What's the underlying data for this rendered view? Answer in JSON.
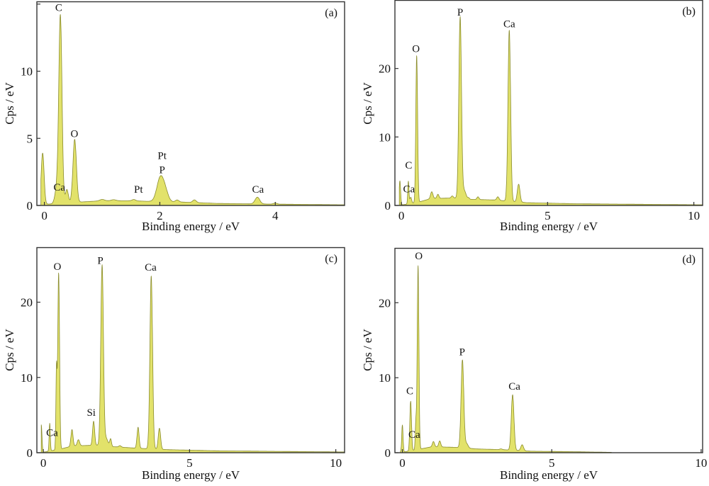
{
  "style": {
    "fill_color": "#e2e26a",
    "stroke_color": "#8a8c2e",
    "frame_color": "#333333"
  },
  "chart_data": [
    {
      "id": "a",
      "type": "area",
      "panel_label": "(a)",
      "xlabel": "Binding energy / eV",
      "ylabel": "Cps / eV",
      "xlim": [
        -0.13,
        5.2
      ],
      "ylim": [
        0,
        15.2
      ],
      "xticks": [
        0,
        2,
        4
      ],
      "xtick_labels": [
        "0",
        "2",
        "4"
      ],
      "yticks": [
        0,
        5,
        10,
        15
      ],
      "ytick_labels": [
        "0",
        "5",
        "10",
        ""
      ],
      "x_end": 5.2,
      "baseline": [
        [
          0.06,
          0.1
        ],
        [
          0.6,
          0.25
        ],
        [
          1.0,
          0.35
        ],
        [
          1.5,
          0.35
        ],
        [
          1.85,
          0.3
        ],
        [
          2.4,
          0.25
        ],
        [
          3.0,
          0.15
        ],
        [
          4.0,
          0.1
        ],
        [
          5.2,
          0.05
        ]
      ],
      "peaks": [
        {
          "x": -0.03,
          "y": 3.8,
          "w": 0.025
        },
        {
          "x": 0.277,
          "y": 14.0,
          "w": 0.028
        },
        {
          "x": 0.21,
          "y": 1.0,
          "w": 0.03
        },
        {
          "x": 0.39,
          "y": 1.0,
          "w": 0.025
        },
        {
          "x": 0.525,
          "y": 4.7,
          "w": 0.03
        },
        {
          "x": 1.0,
          "y": 0.1,
          "w": 0.04
        },
        {
          "x": 1.2,
          "y": 0.08,
          "w": 0.04
        },
        {
          "x": 1.55,
          "y": 0.1,
          "w": 0.03
        },
        {
          "x": 2.01,
          "y": 1.8,
          "w": 0.06
        },
        {
          "x": 2.1,
          "y": 0.6,
          "w": 0.05
        },
        {
          "x": 2.3,
          "y": 0.15,
          "w": 0.03
        },
        {
          "x": 2.6,
          "y": 0.2,
          "w": 0.03
        },
        {
          "x": 3.69,
          "y": 0.5,
          "w": 0.04
        },
        {
          "x": 4.0,
          "y": 0.08,
          "w": 0.03
        }
      ],
      "annotations": [
        {
          "text": "C",
          "x": 0.25,
          "y": 14.5
        },
        {
          "text": "O",
          "x": 0.52,
          "y": 5.1
        },
        {
          "text": "Ca",
          "x": 0.26,
          "y": 1.1
        },
        {
          "text": "Pt",
          "x": 1.63,
          "y": 0.95
        },
        {
          "text": "Pt",
          "x": 2.04,
          "y": 3.45
        },
        {
          "text": "P",
          "x": 2.04,
          "y": 2.4
        },
        {
          "text": "Ca",
          "x": 3.7,
          "y": 0.95
        }
      ]
    },
    {
      "id": "b",
      "type": "area",
      "panel_label": "(b)",
      "xlabel": "Binding energy / eV",
      "ylabel": "Cps / eV",
      "xlim": [
        -0.22,
        10.3
      ],
      "ylim": [
        0,
        30
      ],
      "xticks": [
        0,
        5,
        10
      ],
      "xtick_labels": [
        "0",
        "5",
        "10"
      ],
      "yticks": [
        0,
        10,
        20
      ],
      "ytick_labels": [
        "0",
        "10",
        "20"
      ],
      "x_end": 10.3,
      "baseline": [
        [
          0.05,
          0.1
        ],
        [
          0.6,
          0.5
        ],
        [
          1.0,
          1.0
        ],
        [
          1.8,
          1.1
        ],
        [
          2.3,
          0.9
        ],
        [
          3.2,
          0.8
        ],
        [
          4.3,
          0.4
        ],
        [
          6.0,
          0.25
        ],
        [
          10.3,
          0.1
        ]
      ],
      "peaks": [
        {
          "x": -0.05,
          "y": 3.5,
          "w": 0.025
        },
        {
          "x": 0.24,
          "y": 3.3,
          "w": 0.02
        },
        {
          "x": 0.32,
          "y": 0.9,
          "w": 0.03
        },
        {
          "x": 0.525,
          "y": 21.5,
          "w": 0.03
        },
        {
          "x": 1.04,
          "y": 1.0,
          "w": 0.04
        },
        {
          "x": 1.25,
          "y": 0.6,
          "w": 0.035
        },
        {
          "x": 1.74,
          "y": 0.3,
          "w": 0.035
        },
        {
          "x": 2.01,
          "y": 26.5,
          "w": 0.045
        },
        {
          "x": 2.15,
          "y": 1.2,
          "w": 0.06
        },
        {
          "x": 2.3,
          "y": 0.2,
          "w": 0.03
        },
        {
          "x": 2.62,
          "y": 0.4,
          "w": 0.035
        },
        {
          "x": 3.3,
          "y": 0.5,
          "w": 0.04
        },
        {
          "x": 3.69,
          "y": 25.0,
          "w": 0.045
        },
        {
          "x": 4.01,
          "y": 2.6,
          "w": 0.045
        }
      ],
      "annotations": [
        {
          "text": "P",
          "x": 2.01,
          "y": 27.7
        },
        {
          "text": "Ca",
          "x": 3.69,
          "y": 26.0
        },
        {
          "text": "O",
          "x": 0.5,
          "y": 22.4
        },
        {
          "text": "C",
          "x": 0.25,
          "y": 5.4
        },
        {
          "text": "Ca",
          "x": 0.26,
          "y": 1.9
        }
      ]
    },
    {
      "id": "c",
      "type": "area",
      "panel_label": "(c)",
      "xlabel": "Binding energy / eV",
      "ylabel": "Cps / eV",
      "xlim": [
        -0.22,
        10.3
      ],
      "ylim": [
        0,
        27.3
      ],
      "xticks": [
        0,
        5,
        10
      ],
      "xtick_labels": [
        "0",
        "5",
        "10"
      ],
      "yticks": [
        0,
        10,
        20
      ],
      "ytick_labels": [
        "0",
        "10",
        "20"
      ],
      "x_end": 10.3,
      "baseline": [
        [
          0.05,
          0.1
        ],
        [
          0.6,
          0.5
        ],
        [
          1.0,
          0.9
        ],
        [
          1.8,
          1.0
        ],
        [
          2.4,
          0.8
        ],
        [
          3.2,
          0.6
        ],
        [
          4.3,
          0.4
        ],
        [
          6.0,
          0.25
        ],
        [
          10.3,
          0.1
        ]
      ],
      "peaks": [
        {
          "x": -0.07,
          "y": 3.6,
          "w": 0.025
        },
        {
          "x": 0.22,
          "y": 3.7,
          "w": 0.02
        },
        {
          "x": 0.45,
          "y": 10.6,
          "w": 0.02
        },
        {
          "x": 0.525,
          "y": 23.5,
          "w": 0.03
        },
        {
          "x": 0.98,
          "y": 2.2,
          "w": 0.035
        },
        {
          "x": 1.2,
          "y": 0.8,
          "w": 0.04
        },
        {
          "x": 1.72,
          "y": 3.2,
          "w": 0.035
        },
        {
          "x": 2.01,
          "y": 24.0,
          "w": 0.045
        },
        {
          "x": 2.15,
          "y": 1.0,
          "w": 0.06
        },
        {
          "x": 2.3,
          "y": 1.0,
          "w": 0.03
        },
        {
          "x": 2.62,
          "y": 0.2,
          "w": 0.04
        },
        {
          "x": 3.24,
          "y": 2.8,
          "w": 0.035
        },
        {
          "x": 3.69,
          "y": 23.0,
          "w": 0.045
        },
        {
          "x": 3.97,
          "y": 2.8,
          "w": 0.04
        }
      ],
      "annotations": [
        {
          "text": "O",
          "x": 0.48,
          "y": 24.3
        },
        {
          "text": "P",
          "x": 1.95,
          "y": 25.1
        },
        {
          "text": "Ca",
          "x": 3.67,
          "y": 24.2
        },
        {
          "text": "Si",
          "x": 1.64,
          "y": 4.9
        },
        {
          "text": "Ca",
          "x": 0.3,
          "y": 2.2
        }
      ]
    },
    {
      "id": "d",
      "type": "area",
      "panel_label": "(d)",
      "xlabel": "Binding energy / eV",
      "ylabel": "Cps / eV",
      "xlim": [
        -0.25,
        10.05
      ],
      "ylim": [
        0,
        27.3
      ],
      "xticks": [
        0,
        5,
        10
      ],
      "xtick_labels": [
        "0",
        "5",
        "10"
      ],
      "yticks": [
        0,
        10,
        20
      ],
      "ytick_labels": [
        "0",
        "10",
        "20"
      ],
      "x_end": 7.0,
      "baseline": [
        [
          0.05,
          0.1
        ],
        [
          0.6,
          0.5
        ],
        [
          1.0,
          0.8
        ],
        [
          1.9,
          0.7
        ],
        [
          2.5,
          0.5
        ],
        [
          3.4,
          0.4
        ],
        [
          4.3,
          0.2
        ],
        [
          5.5,
          0.15
        ],
        [
          7.0,
          0.05
        ]
      ],
      "peaks": [
        {
          "x": 0.0,
          "y": 3.6,
          "w": 0.022
        },
        {
          "x": 0.277,
          "y": 6.6,
          "w": 0.028
        },
        {
          "x": 0.45,
          "y": 3.5,
          "w": 0.02
        },
        {
          "x": 0.525,
          "y": 24.5,
          "w": 0.028
        },
        {
          "x": 1.04,
          "y": 0.7,
          "w": 0.035
        },
        {
          "x": 1.25,
          "y": 0.8,
          "w": 0.035
        },
        {
          "x": 2.01,
          "y": 11.7,
          "w": 0.045
        },
        {
          "x": 2.15,
          "y": 0.6,
          "w": 0.05
        },
        {
          "x": 3.3,
          "y": 0.1,
          "w": 0.04
        },
        {
          "x": 3.69,
          "y": 7.4,
          "w": 0.045
        },
        {
          "x": 4.01,
          "y": 0.8,
          "w": 0.045
        }
      ],
      "annotations": [
        {
          "text": "O",
          "x": 0.55,
          "y": 25.8
        },
        {
          "text": "C",
          "x": 0.25,
          "y": 7.8
        },
        {
          "text": "Ca",
          "x": 0.4,
          "y": 2.0
        },
        {
          "text": "P",
          "x": 2.0,
          "y": 13.0
        },
        {
          "text": "Ca",
          "x": 3.75,
          "y": 8.4
        }
      ]
    }
  ]
}
